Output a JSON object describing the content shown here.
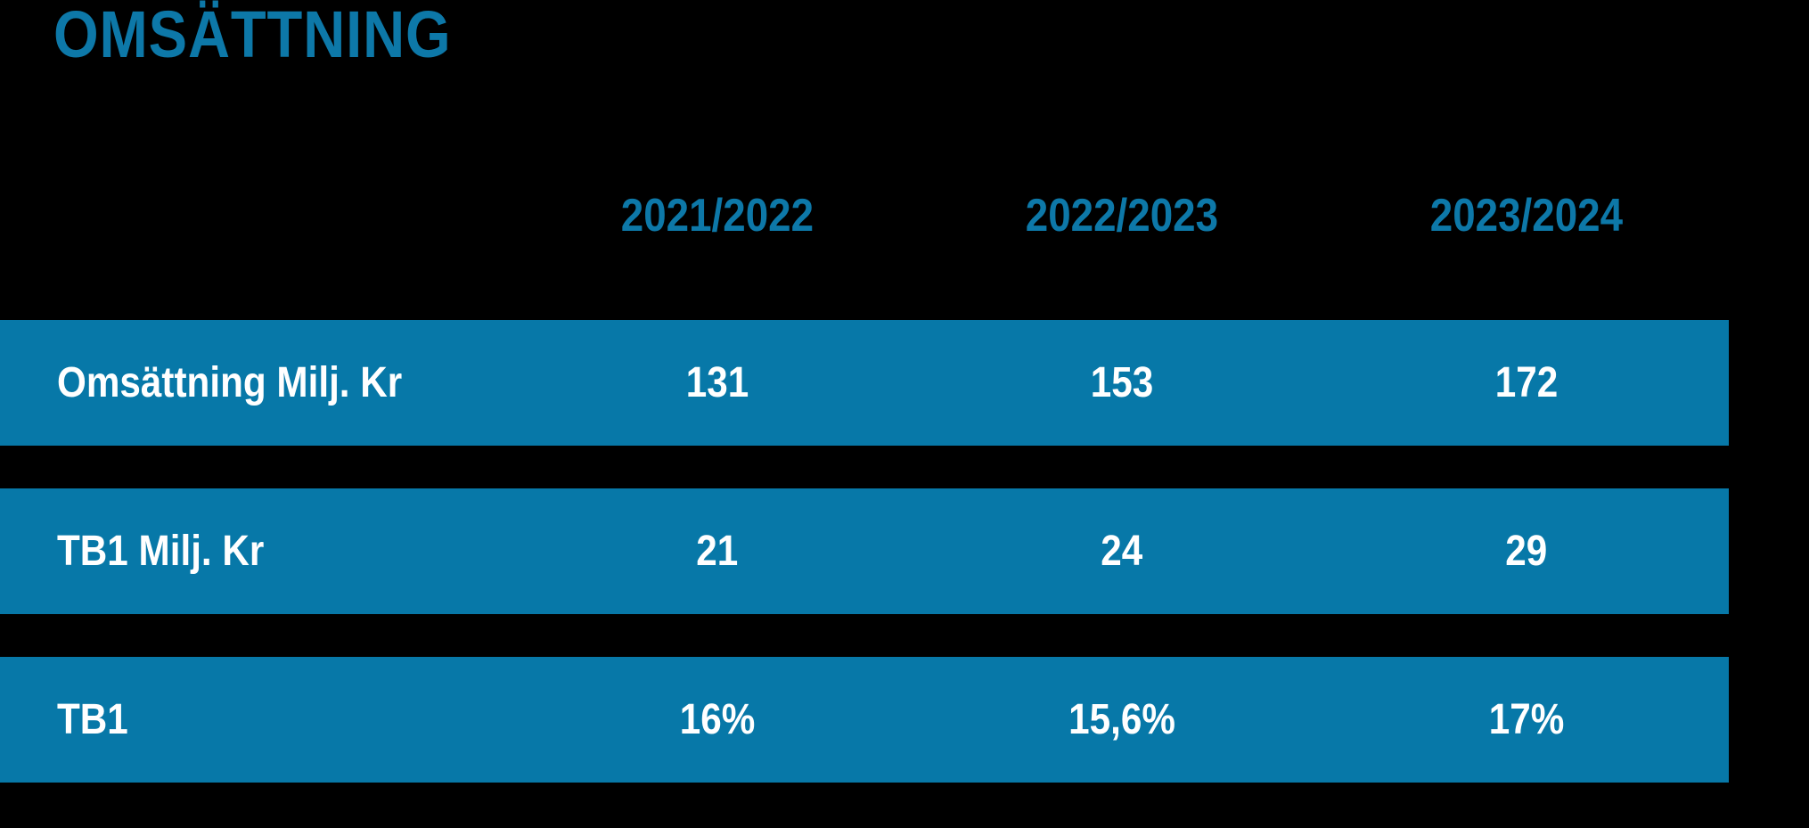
{
  "title": "OMSÄTTNING",
  "colors": {
    "background": "#000000",
    "accent_blue": "#0d78a8",
    "bar_blue": "#0778a8",
    "bar_text": "#ffffff"
  },
  "table": {
    "column_headers": [
      "2021/2022",
      "2022/2023",
      "2023/2024"
    ],
    "rows": [
      {
        "label": "Omsättning Milj. Kr",
        "values": [
          "131",
          "153",
          "172"
        ]
      },
      {
        "label": "TB1 Milj. Kr",
        "values": [
          "21",
          "24",
          "29"
        ]
      },
      {
        "label": "TB1",
        "values": [
          "16%",
          "15,6%",
          "17%"
        ]
      }
    ]
  },
  "chart_data": {
    "type": "table",
    "title": "OMSÄTTNING",
    "categories": [
      "2021/2022",
      "2022/2023",
      "2023/2024"
    ],
    "series": [
      {
        "name": "Omsättning Milj. Kr",
        "unit": "Milj. Kr",
        "values": [
          131,
          153,
          172
        ]
      },
      {
        "name": "TB1 Milj. Kr",
        "unit": "Milj. Kr",
        "values": [
          21,
          24,
          29
        ]
      },
      {
        "name": "TB1",
        "unit": "%",
        "values": [
          16,
          15.6,
          17
        ]
      }
    ],
    "layout": "rows rendered as full-width blue bands on black background, legend none, grid off"
  }
}
